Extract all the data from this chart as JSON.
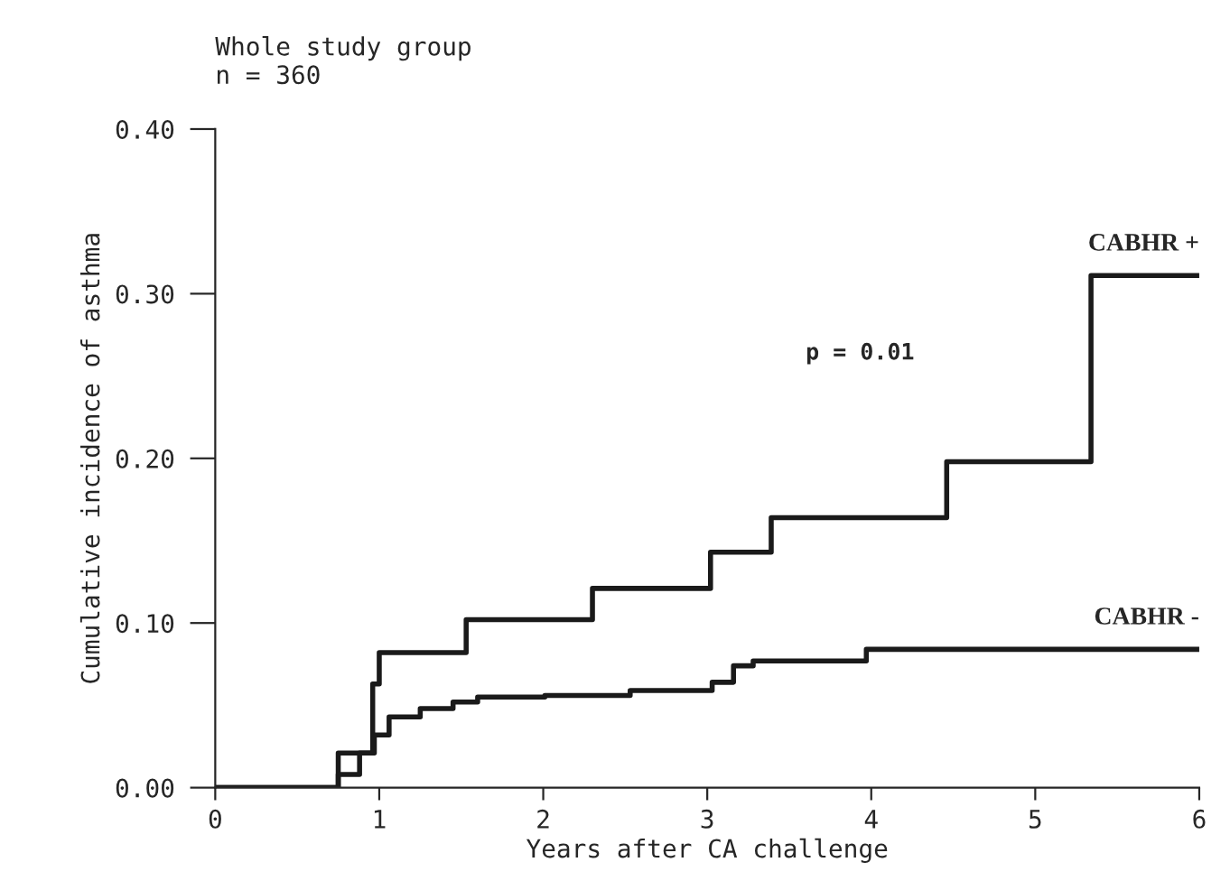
{
  "chart_data": {
    "type": "step",
    "title": "Whole study group\nn = 360",
    "xlabel": "Years after CA challenge",
    "ylabel": "Cumulative incidence of asthma",
    "series": [
      {
        "name": "CABHR +",
        "color": "#1a1a1a",
        "x": [
          0,
          0.75,
          0.96,
          1.0,
          1.53,
          2.3,
          3.02,
          3.39,
          4.46,
          5.34,
          6
        ],
        "values": [
          0,
          0.021,
          0.063,
          0.082,
          0.102,
          0.121,
          0.143,
          0.164,
          0.198,
          0.311,
          0.311
        ]
      },
      {
        "name": "CABHR -",
        "color": "#1a1a1a",
        "x": [
          0,
          0.75,
          0.88,
          0.97,
          1.06,
          1.25,
          1.45,
          1.6,
          2.01,
          2.53,
          3.03,
          3.16,
          3.28,
          3.97,
          6
        ],
        "values": [
          0,
          0.008,
          0.021,
          0.032,
          0.043,
          0.048,
          0.052,
          0.055,
          0.056,
          0.059,
          0.064,
          0.074,
          0.077,
          0.084,
          0.084
        ]
      }
    ],
    "annotations": [
      "p = 0.01"
    ],
    "xlim": [
      0,
      6
    ],
    "xticks": [
      0,
      1,
      2,
      3,
      4,
      5,
      6
    ],
    "ylim": [
      0,
      0.4
    ],
    "yticks": [
      {
        "value": 0,
        "label": "0.00"
      },
      {
        "value": 0.1,
        "label": "0.10"
      },
      {
        "value": 0.2,
        "label": "0.20"
      },
      {
        "value": 0.3,
        "label": "0.30"
      },
      {
        "value": 0.4,
        "label": "0.40"
      }
    ],
    "grid": false,
    "legend": false,
    "line_style": "solid"
  }
}
